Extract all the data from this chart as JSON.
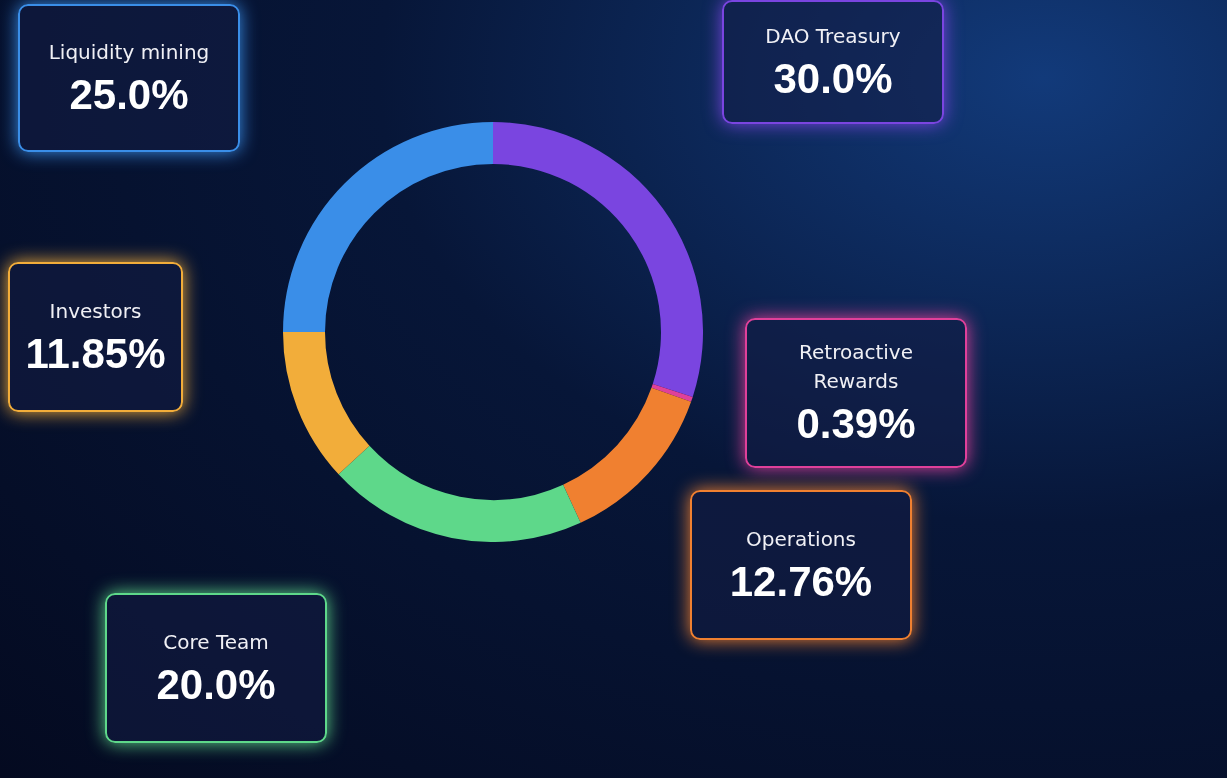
{
  "chart_data": {
    "type": "donut",
    "categories": [
      "DAO Treasury",
      "Retroactive Rewards",
      "Operations",
      "Core Team",
      "Investors",
      "Liquidity mining"
    ],
    "values": [
      30.0,
      0.39,
      12.76,
      20.0,
      11.85,
      25.0
    ],
    "value_labels": [
      "30.0%",
      "0.39%",
      "12.76%",
      "20.0%",
      "11.85%",
      "25.0%"
    ],
    "colors": [
      "#7a45e0",
      "#e0409a",
      "#f08030",
      "#5ed88a",
      "#f2ad3a",
      "#3a8ee8"
    ],
    "legend": false
  }
}
